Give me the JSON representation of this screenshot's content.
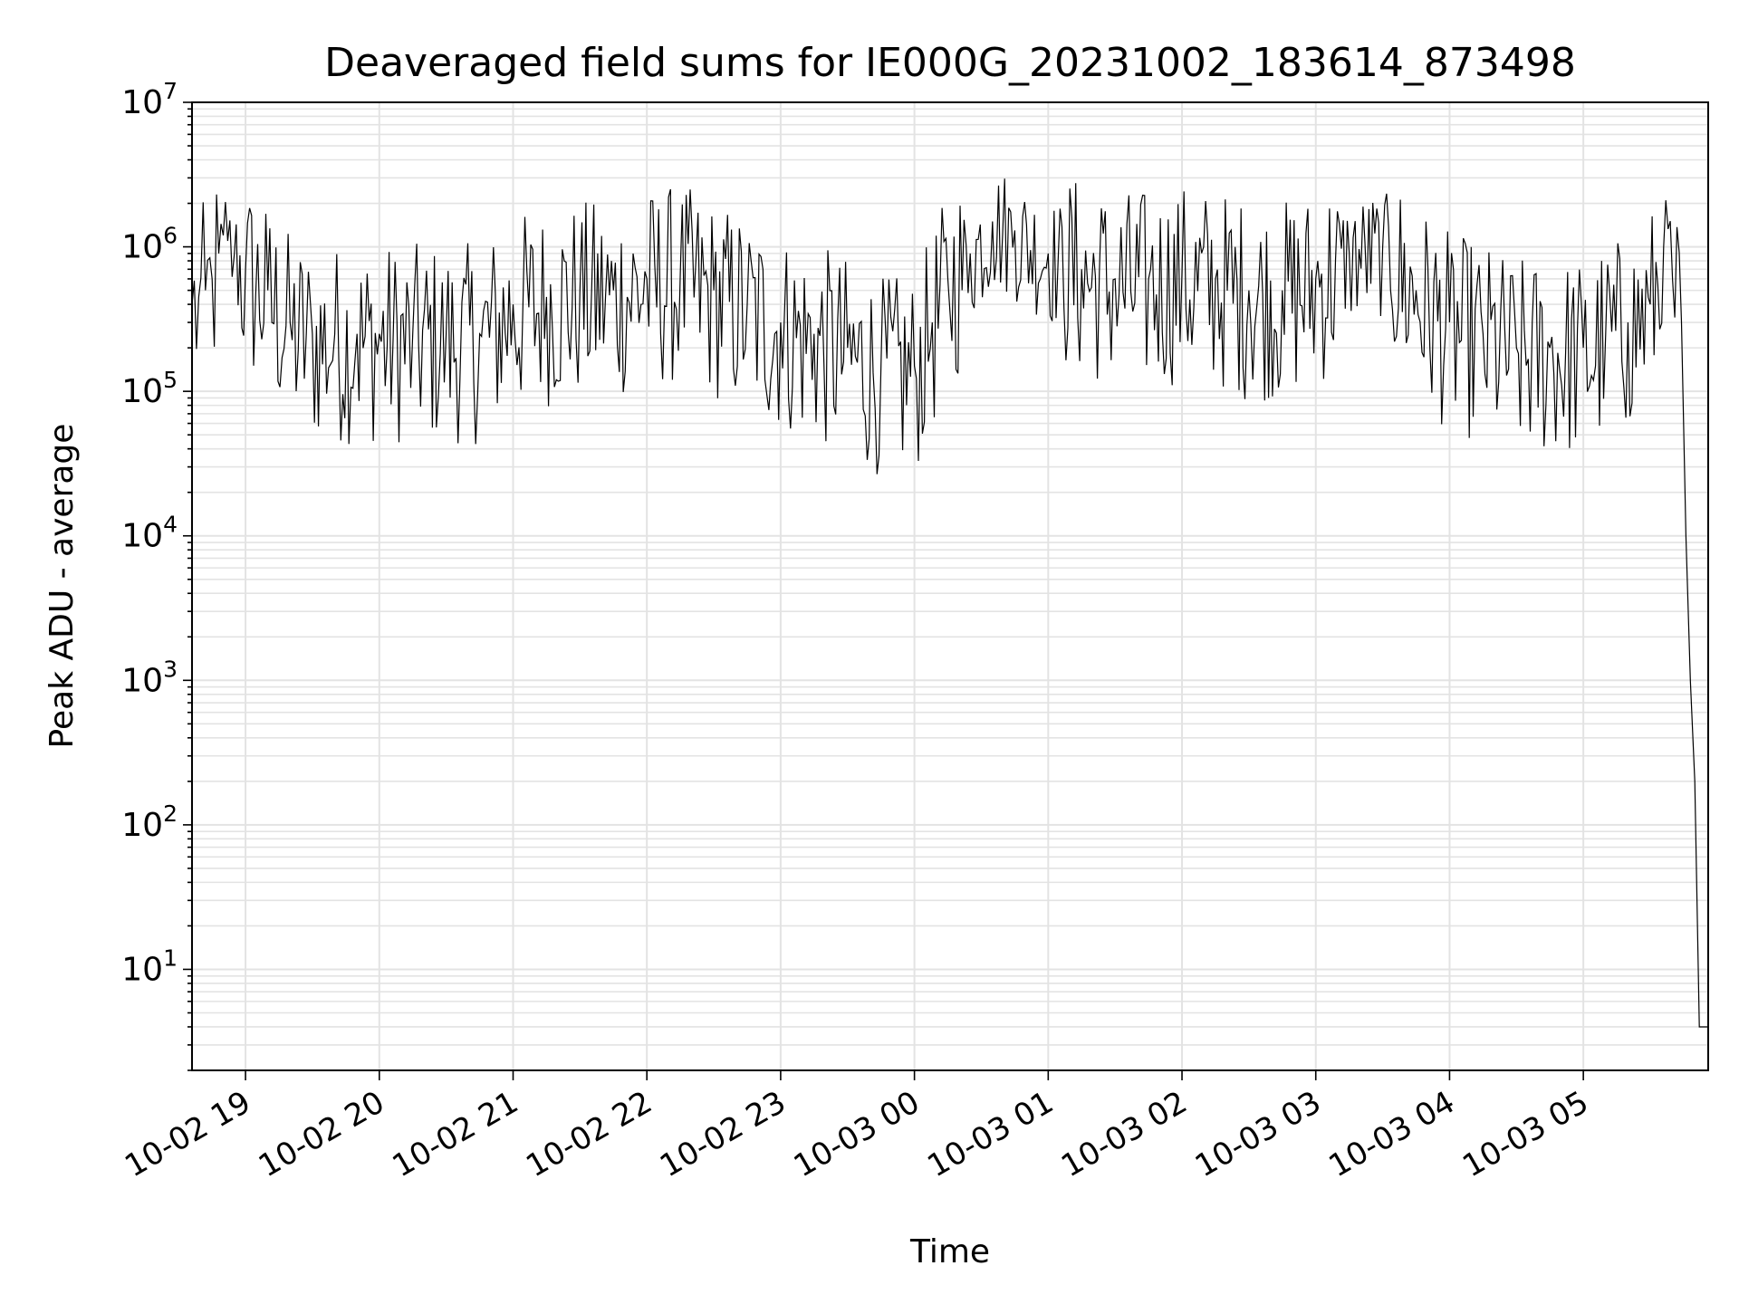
{
  "chart_data": {
    "type": "line",
    "title": "Deaveraged field sums for IE000G_20231002_183614_873498",
    "xlabel": "Time",
    "ylabel": "Peak ADU - average",
    "yscale": "log",
    "ylim": [
      2,
      10000000
    ],
    "xlim": [
      "2023-10-02 18:36",
      "2023-10-03 05:56"
    ],
    "grid": true,
    "legend": "none",
    "x_ticks": [
      {
        "time": "2023-10-02 19:00",
        "label": "10-02 19"
      },
      {
        "time": "2023-10-02 20:00",
        "label": "10-02 20"
      },
      {
        "time": "2023-10-02 21:00",
        "label": "10-02 21"
      },
      {
        "time": "2023-10-02 22:00",
        "label": "10-02 22"
      },
      {
        "time": "2023-10-02 23:00",
        "label": "10-02 23"
      },
      {
        "time": "2023-10-03 00:00",
        "label": "10-03 00"
      },
      {
        "time": "2023-10-03 01:00",
        "label": "10-03 01"
      },
      {
        "time": "2023-10-03 02:00",
        "label": "10-03 02"
      },
      {
        "time": "2023-10-03 03:00",
        "label": "10-03 03"
      },
      {
        "time": "2023-10-03 04:00",
        "label": "10-03 04"
      },
      {
        "time": "2023-10-03 05:00",
        "label": "10-03 05"
      }
    ],
    "y_ticks": [
      {
        "value": 10,
        "base": "10",
        "exp": "1"
      },
      {
        "value": 100,
        "base": "10",
        "exp": "2"
      },
      {
        "value": 1000,
        "base": "10",
        "exp": "3"
      },
      {
        "value": 10000,
        "base": "10",
        "exp": "4"
      },
      {
        "value": 100000,
        "base": "10",
        "exp": "5"
      },
      {
        "value": 1000000,
        "base": "10",
        "exp": "6"
      },
      {
        "value": 10000000,
        "base": "10",
        "exp": "7"
      }
    ],
    "series": [
      {
        "color": "#000000",
        "x": [
          "2023-10-02 18:36",
          "2023-10-02 18:39",
          "2023-10-02 18:42",
          "2023-10-02 18:45",
          "2023-10-02 18:48",
          "2023-10-02 18:50",
          "2023-10-02 18:52",
          "2023-10-02 18:55",
          "2023-10-02 19:00",
          "2023-10-02 19:10",
          "2023-10-02 19:20",
          "2023-10-02 19:30",
          "2023-10-02 19:40",
          "2023-10-02 19:50",
          "2023-10-02 20:00",
          "2023-10-02 20:15",
          "2023-10-02 20:30",
          "2023-10-02 20:45",
          "2023-10-02 21:00",
          "2023-10-02 21:15",
          "2023-10-02 21:30",
          "2023-10-02 21:45",
          "2023-10-02 22:00",
          "2023-10-02 22:15",
          "2023-10-02 22:30",
          "2023-10-02 22:45",
          "2023-10-02 23:00",
          "2023-10-02 23:15",
          "2023-10-02 23:30",
          "2023-10-02 23:45",
          "2023-10-03 00:00",
          "2023-10-03 00:08",
          "2023-10-03 00:15",
          "2023-10-03 00:25",
          "2023-10-03 00:35",
          "2023-10-03 00:45",
          "2023-10-03 01:00",
          "2023-10-03 01:15",
          "2023-10-03 01:30",
          "2023-10-03 01:45",
          "2023-10-03 02:00",
          "2023-10-03 02:15",
          "2023-10-03 02:30",
          "2023-10-03 02:45",
          "2023-10-03 03:00",
          "2023-10-03 03:15",
          "2023-10-03 03:30",
          "2023-10-03 03:45",
          "2023-10-03 04:00",
          "2023-10-03 04:15",
          "2023-10-03 04:30",
          "2023-10-03 04:45",
          "2023-10-03 05:00",
          "2023-10-03 05:10",
          "2023-10-03 05:20",
          "2023-10-03 05:30",
          "2023-10-03 05:36",
          "2023-10-03 05:40",
          "2023-10-03 05:44",
          "2023-10-03 05:46",
          "2023-10-03 05:48",
          "2023-10-03 05:50",
          "2023-10-03 05:52",
          "2023-10-03 05:54",
          "2023-10-03 05:56"
        ],
        "y": [
          400000,
          450000,
          500000,
          600000,
          900000,
          1200000,
          1100000,
          900000,
          700000,
          500000,
          300000,
          250000,
          250000,
          250000,
          250000,
          250000,
          250000,
          250000,
          400000,
          450000,
          500000,
          500000,
          600000,
          650000,
          500000,
          400000,
          300000,
          250000,
          200000,
          150000,
          150000,
          300000,
          600000,
          900000,
          1500000,
          1300000,
          900000,
          700000,
          600000,
          600000,
          650000,
          600000,
          500000,
          500000,
          600000,
          900000,
          1000000,
          500000,
          300000,
          250000,
          200000,
          200000,
          200000,
          250000,
          300000,
          400000,
          1000000,
          600000,
          300000,
          10000,
          1000,
          200,
          4,
          4,
          4
        ]
      }
    ]
  }
}
